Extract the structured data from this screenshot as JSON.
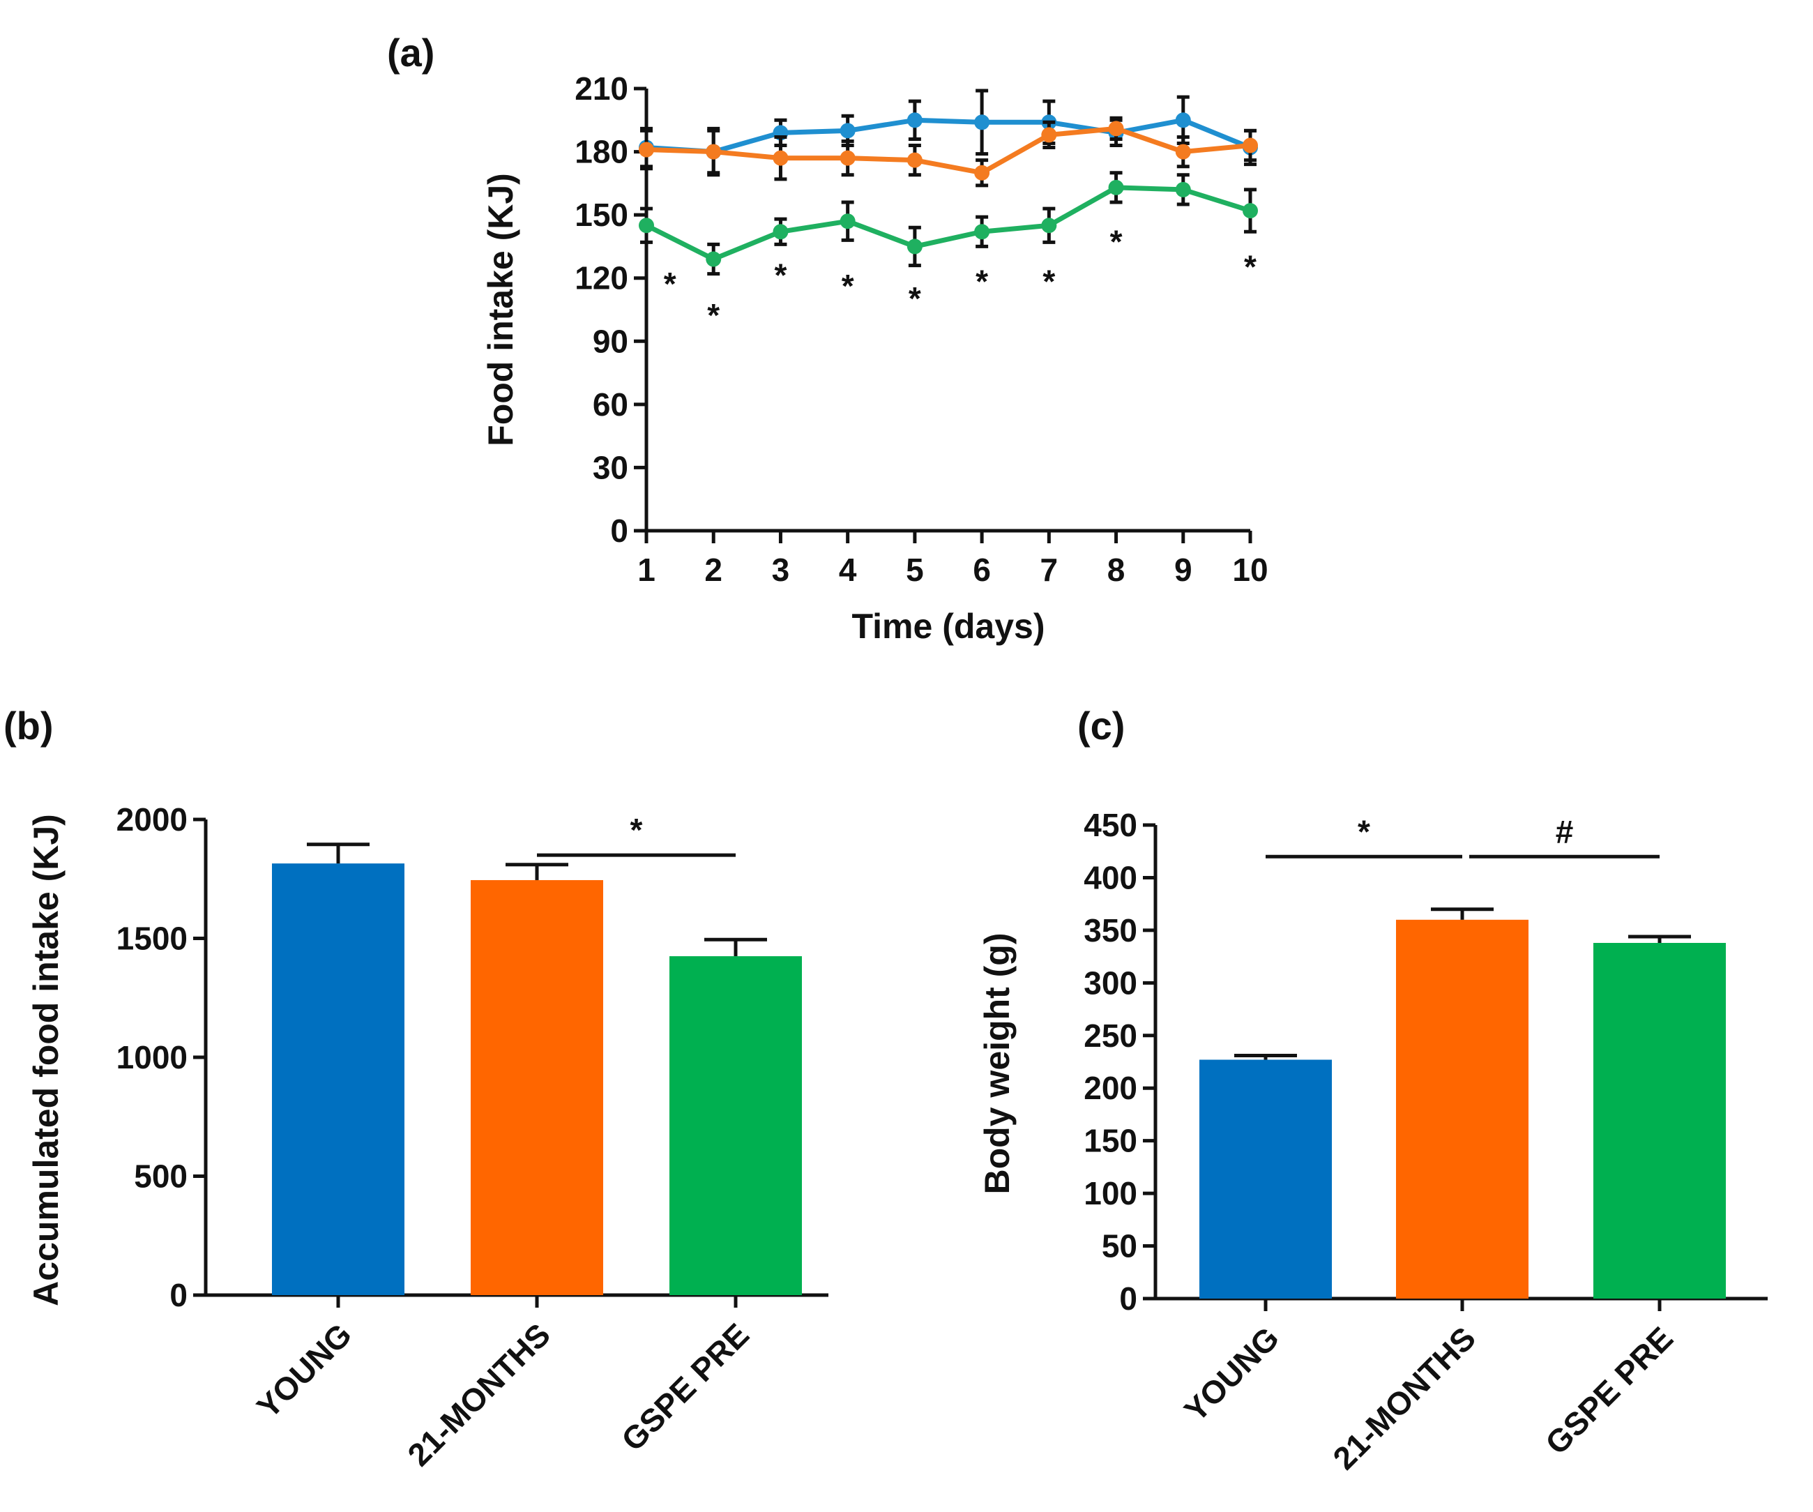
{
  "colors": {
    "young": "#0070C0",
    "months21": "#FF6600",
    "gspe": "#00B050",
    "line_young": "#1F8FD0",
    "line_months21": "#F47B20",
    "line_gspe": "#1FB060",
    "axis": "#111111"
  },
  "chart_data": [
    {
      "panel": "(a)",
      "type": "line",
      "xlabel": "Time (days)",
      "ylabel": "Food intake (KJ)",
      "ylim": [
        0,
        210
      ],
      "yticks": [
        "0",
        "30",
        "60",
        "90",
        "120",
        "150",
        "180",
        "210"
      ],
      "x": [
        "1",
        "2",
        "3",
        "4",
        "5",
        "6",
        "7",
        "8",
        "9",
        "10"
      ],
      "series": [
        {
          "name": "YOUNG",
          "color": "young",
          "values": [
            182,
            180,
            189,
            190,
            195,
            194,
            194,
            189,
            195,
            182
          ],
          "err": [
            9,
            11,
            6,
            7,
            9,
            15,
            10,
            6,
            11,
            8
          ]
        },
        {
          "name": "21-MONTHS",
          "color": "months21",
          "values": [
            181,
            180,
            177,
            177,
            176,
            170,
            188,
            191,
            180,
            183
          ],
          "err": [
            9,
            10,
            10,
            8,
            7,
            6,
            6,
            5,
            7,
            7
          ]
        },
        {
          "name": "GSPE PRE",
          "color": "gspe",
          "values": [
            145,
            129,
            142,
            147,
            135,
            142,
            145,
            163,
            162,
            152
          ],
          "err": [
            8,
            7,
            6,
            9,
            9,
            7,
            8,
            7,
            7,
            10
          ]
        }
      ],
      "annotations": [
        {
          "text": "*",
          "x": 1.35,
          "y": 118
        },
        {
          "text": "*",
          "x": 2,
          "y": 103
        },
        {
          "text": "*",
          "x": 3,
          "y": 122
        },
        {
          "text": "*",
          "x": 4,
          "y": 117
        },
        {
          "text": "*",
          "x": 5,
          "y": 111
        },
        {
          "text": "*",
          "x": 6,
          "y": 119
        },
        {
          "text": "*",
          "x": 7,
          "y": 119
        },
        {
          "text": "*",
          "x": 8,
          "y": 138
        },
        {
          "text": "*",
          "x": 10,
          "y": 126
        }
      ]
    },
    {
      "panel": "(b)",
      "type": "bar",
      "xlabel": "",
      "ylabel": "Accumulated food intake (KJ)",
      "ylim": [
        0,
        2000
      ],
      "yticks": [
        "0",
        "500",
        "1000",
        "1500",
        "2000"
      ],
      "categories": [
        "YOUNG",
        "21-MONTHS",
        "GSPE PRE"
      ],
      "values": [
        1815,
        1745,
        1425
      ],
      "err": [
        80,
        65,
        70
      ],
      "bar_colors": [
        "young",
        "months21",
        "gspe"
      ],
      "significance": [
        {
          "text": "*",
          "from": 1,
          "to": 2,
          "y": 1850
        }
      ]
    },
    {
      "panel": "(c)",
      "type": "bar",
      "xlabel": "",
      "ylabel": "Body weight (g)",
      "ylim": [
        0,
        450
      ],
      "yticks": [
        "0",
        "50",
        "100",
        "150",
        "200",
        "250",
        "300",
        "350",
        "400",
        "450"
      ],
      "categories": [
        "YOUNG",
        "21-MONTHS",
        "GSPE PRE"
      ],
      "values": [
        227,
        360,
        338
      ],
      "err": [
        4,
        10,
        6
      ],
      "bar_colors": [
        "young",
        "months21",
        "gspe"
      ],
      "significance": [
        {
          "text": "*",
          "from": 0,
          "to": 1,
          "y": 420
        },
        {
          "text": "#",
          "from": 1,
          "to": 2,
          "y": 420
        }
      ]
    }
  ]
}
